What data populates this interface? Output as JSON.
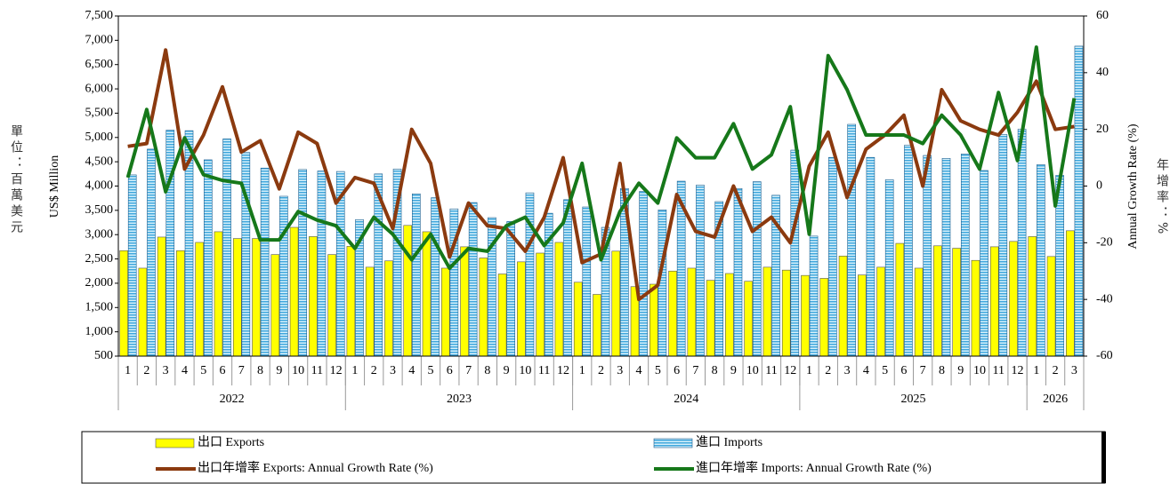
{
  "chart_data": {
    "type": "bar",
    "left_unit_label": "單位：百萬美元",
    "right_unit_label": "年增率：%",
    "y_axis_label": "US$ Million",
    "y2_axis_label": "Annual Growth Rate (%)",
    "groups": [
      {
        "label": "2022",
        "categories": [
          "1",
          "2",
          "3",
          "4",
          "5",
          "6",
          "7",
          "8",
          "9",
          "10",
          "11",
          "12"
        ]
      },
      {
        "label": "2023",
        "categories": [
          "1",
          "2",
          "3",
          "4",
          "5",
          "6",
          "7",
          "8",
          "9",
          "10",
          "11",
          "12"
        ]
      },
      {
        "label": "2024",
        "categories": [
          "1",
          "2",
          "3",
          "4",
          "5",
          "6",
          "7",
          "8",
          "9",
          "10",
          "11",
          "12"
        ]
      },
      {
        "label": "2025",
        "categories": [
          "1",
          "2",
          "3",
          "4",
          "5",
          "6",
          "7",
          "8",
          "9",
          "10",
          "11",
          "12"
        ]
      },
      {
        "label": "2026",
        "categories": [
          "1",
          "2",
          "3"
        ]
      }
    ],
    "ylim": [
      500,
      7500
    ],
    "yticks": [
      500,
      {
        "value": 1000,
        "label": "1,000"
      },
      {
        "value": 1500,
        "label": "1,500"
      },
      {
        "value": 2000,
        "label": "2,000"
      },
      {
        "value": 2500,
        "label": "2,500"
      },
      {
        "value": 3000,
        "label": "3,000"
      },
      {
        "value": 3500,
        "label": "3,500"
      },
      {
        "value": 4000,
        "label": "4,000"
      },
      {
        "value": 4500,
        "label": "4,500"
      },
      {
        "value": 5000,
        "label": "5,000"
      },
      {
        "value": 5500,
        "label": "5,500"
      },
      {
        "value": 6000,
        "label": "6,000"
      },
      {
        "value": 6500,
        "label": "6,500"
      },
      {
        "value": 7000,
        "label": "7,000"
      },
      {
        "value": 7500,
        "label": "7,500"
      }
    ],
    "y2lim": [
      -60,
      60
    ],
    "y2ticks": [
      -60,
      -40,
      -20,
      0,
      20,
      40,
      60
    ],
    "series": [
      {
        "name": "出口 Exports",
        "type": "bar",
        "color": "#ffff00",
        "values": [
          2670,
          2310,
          2950,
          2670,
          2840,
          3060,
          2920,
          2920,
          2590,
          3150,
          2960,
          2590,
          2760,
          2330,
          2460,
          3190,
          3060,
          2310,
          2750,
          2520,
          2190,
          2440,
          2620,
          2840,
          2020,
          1770,
          2660,
          1930,
          1980,
          2250,
          2310,
          2060,
          2200,
          2040,
          2330,
          2270,
          2160,
          2100,
          2560,
          2170,
          2330,
          2820,
          2310,
          2770,
          2720,
          2470,
          2750,
          2860,
          2960,
          2550,
          3080
        ]
      },
      {
        "name": "進口 Imports",
        "type": "bar",
        "color": "#4fb3e3",
        "values": [
          4230,
          4760,
          5150,
          5140,
          4540,
          4970,
          4690,
          4370,
          3790,
          4340,
          4310,
          4300,
          3310,
          4250,
          4350,
          3840,
          3760,
          3530,
          3660,
          3350,
          3270,
          3860,
          3440,
          3720,
          3570,
          3150,
          3950,
          3890,
          3510,
          4100,
          4020,
          3680,
          3950,
          4090,
          3810,
          4740,
          2970,
          4590,
          5270,
          4590,
          4130,
          4840,
          4630,
          4570,
          4660,
          4320,
          5060,
          5170,
          4440,
          4220,
          6880
        ]
      },
      {
        "name": "出口年增率 Exports: Annual Growth Rate (%)",
        "type": "line",
        "axis": "y2",
        "color": "#8b3a0f",
        "values": [
          14,
          15,
          48,
          6,
          18,
          35,
          12,
          16,
          -1,
          19,
          15,
          -6,
          3,
          1,
          -15,
          20,
          8,
          -25,
          -6,
          -14,
          -15,
          -23,
          -11,
          10,
          -27,
          -24,
          8,
          -40,
          -35,
          -3,
          -16,
          -18,
          0,
          -16,
          -11,
          -20,
          7,
          19,
          -4,
          13,
          18,
          25,
          0,
          34,
          23,
          20,
          18,
          26,
          37,
          20,
          21
        ]
      },
      {
        "name": "進口年增率 Imports: Annual Growth Rate (%)",
        "type": "line",
        "axis": "y2",
        "color": "#16781a",
        "values": [
          3,
          27,
          -2,
          17,
          4,
          2,
          1,
          -19,
          -19,
          -9,
          -12,
          -14,
          -22,
          -11,
          -17,
          -26,
          -17,
          -29,
          -22,
          -23,
          -14,
          -11,
          -21,
          -13,
          8,
          -26,
          -9,
          1,
          -6,
          17,
          10,
          10,
          22,
          6,
          11,
          28,
          -17,
          46,
          34,
          18,
          18,
          18,
          15,
          25,
          18,
          6,
          33,
          9,
          49,
          -7,
          31
        ]
      }
    ]
  }
}
